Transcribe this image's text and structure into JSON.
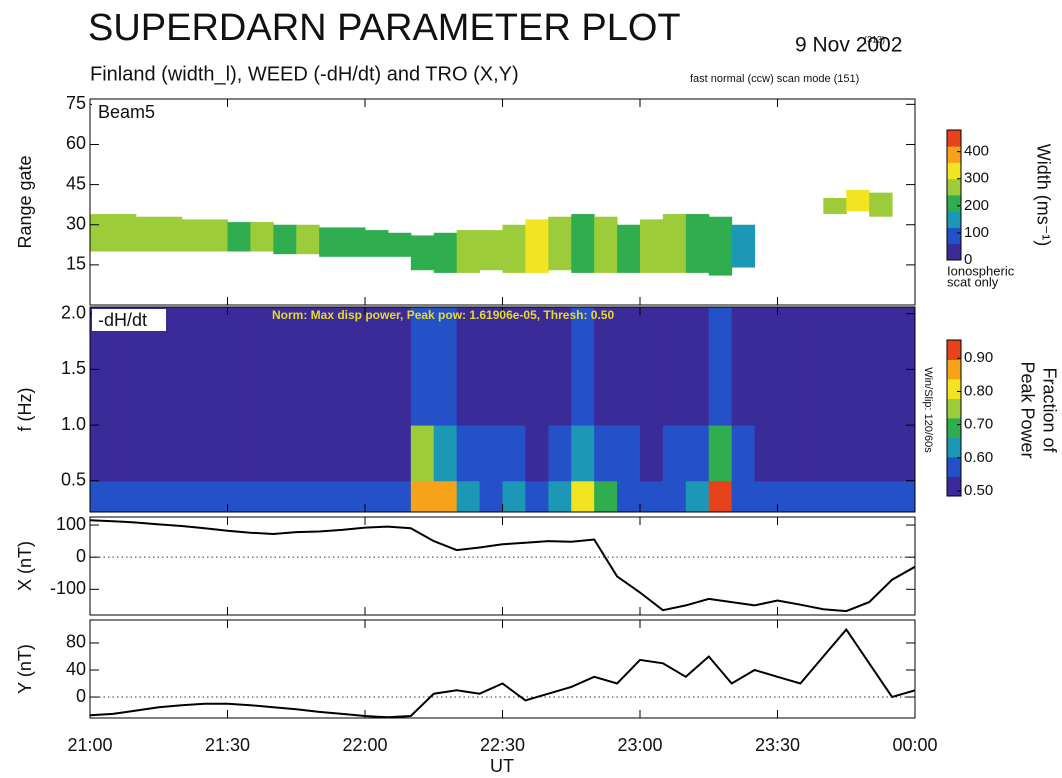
{
  "title": "SUPERDARN PARAMETER PLOT",
  "subtitle": "Finland (width_l), WEED (-dH/dt) and TRO (X,Y)",
  "date": "9 Nov 2002",
  "date_note": "(313)",
  "scan_mode": "fast normal (ccw) scan mode (151)",
  "x_label": "UT",
  "chart_data": [
    {
      "type": "range_time",
      "panel_label": "Beam5",
      "y_label": "Range gate",
      "xlim": [
        0,
        180
      ],
      "xticks": [
        0,
        30,
        60,
        90,
        120,
        150,
        180
      ],
      "ylim": [
        0,
        77
      ],
      "yticks": [
        15,
        30,
        45,
        60,
        75
      ],
      "xbins": [
        0,
        5,
        10,
        15,
        20,
        25,
        30,
        35,
        40,
        45,
        50,
        55,
        60,
        65,
        70,
        75,
        80,
        85,
        90,
        95,
        100,
        105,
        110,
        115,
        120,
        125,
        130,
        135,
        140,
        145,
        150,
        155,
        160,
        165,
        170,
        175,
        180
      ],
      "band_bottom": [
        20,
        20,
        20,
        20,
        20,
        20,
        20,
        20,
        19,
        19,
        18,
        18,
        18,
        18,
        13,
        12,
        12,
        13,
        12,
        12,
        13,
        12,
        12,
        12,
        12,
        12,
        12,
        11,
        14,
        null,
        null,
        null,
        34,
        35,
        33,
        null
      ],
      "band_top": [
        34,
        34,
        33,
        33,
        32,
        32,
        31,
        31,
        30,
        30,
        29,
        29,
        28,
        27,
        26,
        27,
        28,
        28,
        30,
        32,
        33,
        34,
        33,
        30,
        32,
        34,
        34,
        33,
        30,
        null,
        null,
        null,
        40,
        43,
        42,
        null
      ],
      "width": [
        250,
        280,
        260,
        240,
        270,
        250,
        230,
        260,
        220,
        240,
        210,
        200,
        220,
        180,
        200,
        220,
        260,
        240,
        280,
        300,
        250,
        230,
        260,
        220,
        270,
        250,
        200,
        180,
        150,
        null,
        null,
        null,
        250,
        300,
        280,
        null
      ],
      "colorscale": [
        "#3b2b98",
        "#2450c8",
        "#1c97b5",
        "#2fad4f",
        "#9ccc3a",
        "#f2e421",
        "#f7a21b",
        "#e6421c"
      ],
      "colorbar": {
        "label": "Width (ms⁻¹)",
        "lim": [
          0,
          480
        ],
        "ticks": [
          0,
          100,
          200,
          300,
          400
        ],
        "note_lines": [
          "Ionospheric",
          "scat only"
        ]
      }
    },
    {
      "type": "spectrogram",
      "panel_label": "-dH/dt",
      "y_label": "f (Hz)",
      "annotation": "Norm: Max disp power, Peak pow: 1.61906e-05, Thresh: 0.50",
      "side_note": "Win/Slip: 120/60s",
      "xlim": [
        0,
        180
      ],
      "xticks": [
        0,
        30,
        60,
        90,
        120,
        150,
        180
      ],
      "ylim": [
        0.22,
        2.06
      ],
      "yticks": [
        {
          "value": 0.5,
          "label": "0.5"
        },
        {
          "value": 1,
          "label": "1.0"
        },
        {
          "value": 1.5,
          "label": "1.5"
        },
        {
          "value": 2,
          "label": "2.0"
        }
      ],
      "xbins": [
        0,
        5,
        10,
        15,
        20,
        25,
        30,
        35,
        40,
        45,
        50,
        55,
        60,
        65,
        70,
        75,
        80,
        85,
        90,
        95,
        100,
        105,
        110,
        115,
        120,
        125,
        130,
        135,
        140,
        145,
        150,
        155,
        160,
        165,
        170,
        175,
        180
      ],
      "ybins": [
        0.22,
        0.5,
        1.0,
        2.06
      ],
      "z": [
        [
          0.55,
          0.52,
          0.5
        ],
        [
          0.56,
          0.52,
          0.5
        ],
        [
          0.55,
          0.53,
          0.5
        ],
        [
          0.57,
          0.52,
          0.51
        ],
        [
          0.55,
          0.52,
          0.5
        ],
        [
          0.56,
          0.53,
          0.5
        ],
        [
          0.55,
          0.52,
          0.5
        ],
        [
          0.57,
          0.53,
          0.51
        ],
        [
          0.56,
          0.52,
          0.5
        ],
        [
          0.55,
          0.52,
          0.5
        ],
        [
          0.58,
          0.53,
          0.51
        ],
        [
          0.57,
          0.52,
          0.5
        ],
        [
          0.56,
          0.53,
          0.5
        ],
        [
          0.58,
          0.54,
          0.51
        ],
        [
          0.88,
          0.72,
          0.6
        ],
        [
          0.85,
          0.65,
          0.56
        ],
        [
          0.65,
          0.58,
          0.53
        ],
        [
          0.6,
          0.55,
          0.52
        ],
        [
          0.62,
          0.55,
          0.52
        ],
        [
          0.6,
          0.54,
          0.51
        ],
        [
          0.62,
          0.55,
          0.52
        ],
        [
          0.82,
          0.66,
          0.56
        ],
        [
          0.7,
          0.6,
          0.54
        ],
        [
          0.6,
          0.55,
          0.52
        ],
        [
          0.58,
          0.54,
          0.51
        ],
        [
          0.6,
          0.55,
          0.52
        ],
        [
          0.62,
          0.55,
          0.52
        ],
        [
          0.9,
          0.7,
          0.6
        ],
        [
          0.6,
          0.55,
          0.52
        ],
        [
          0.58,
          0.54,
          0.51
        ],
        [
          0.57,
          0.53,
          0.5
        ],
        [
          0.58,
          0.54,
          0.51
        ],
        [
          0.57,
          0.53,
          0.5
        ],
        [
          0.56,
          0.52,
          0.5
        ],
        [
          0.57,
          0.53,
          0.5
        ],
        [
          0.56,
          0.52,
          0.5
        ]
      ],
      "colorscale": [
        "#3b2b98",
        "#2450c8",
        "#1c97b5",
        "#2fad4f",
        "#9ccc3a",
        "#f2e421",
        "#f7a21b",
        "#e6421c"
      ],
      "colorbar": {
        "label_lines": [
          "Fraction of",
          "Peak Power"
        ],
        "lim": [
          0.485,
          0.955
        ],
        "ticks": [
          {
            "value": 0.5,
            "label": "0.50"
          },
          {
            "value": 0.6,
            "label": "0.60"
          },
          {
            "value": 0.7,
            "label": "0.70"
          },
          {
            "value": 0.8,
            "label": "0.80"
          },
          {
            "value": 0.9,
            "label": "0.90"
          }
        ]
      }
    },
    {
      "type": "line",
      "y_label": "X (nT)",
      "color": "#000000",
      "zero_line": true,
      "xlim": [
        0,
        180
      ],
      "xticks": [
        0,
        30,
        60,
        90,
        120,
        150,
        180
      ],
      "ylim": [
        -180,
        125
      ],
      "yticks": [
        -100,
        0,
        100
      ],
      "x": [
        0,
        5,
        10,
        15,
        20,
        25,
        30,
        35,
        40,
        45,
        50,
        55,
        60,
        65,
        70,
        75,
        80,
        85,
        90,
        95,
        100,
        105,
        110,
        115,
        120,
        125,
        130,
        135,
        140,
        145,
        150,
        155,
        160,
        165,
        170,
        175,
        180
      ],
      "values": [
        115,
        112,
        108,
        102,
        97,
        90,
        82,
        76,
        72,
        78,
        80,
        85,
        92,
        95,
        90,
        50,
        22,
        30,
        40,
        45,
        50,
        48,
        55,
        -60,
        -110,
        -165,
        -150,
        -130,
        -140,
        -150,
        -135,
        -148,
        -162,
        -168,
        -140,
        -70,
        -30
      ]
    },
    {
      "type": "line",
      "y_label": "Y (nT)",
      "color": "#000000",
      "zero_line": true,
      "xlim": [
        0,
        180
      ],
      "xticks": [
        {
          "value": 0,
          "label": "21:00"
        },
        {
          "value": 30,
          "label": "21:30"
        },
        {
          "value": 60,
          "label": "22:00"
        },
        {
          "value": 90,
          "label": "22:30"
        },
        {
          "value": 120,
          "label": "23:00"
        },
        {
          "value": 150,
          "label": "23:30"
        },
        {
          "value": 180,
          "label": "00:00"
        }
      ],
      "ylim": [
        -31,
        114
      ],
      "yticks": [
        0,
        40,
        80
      ],
      "x": [
        0,
        5,
        10,
        15,
        20,
        25,
        30,
        35,
        40,
        45,
        50,
        55,
        60,
        65,
        70,
        75,
        80,
        85,
        90,
        95,
        100,
        105,
        110,
        115,
        120,
        125,
        130,
        135,
        140,
        145,
        150,
        155,
        160,
        165,
        170,
        175,
        180
      ],
      "values": [
        -27,
        -25,
        -20,
        -15,
        -12,
        -10,
        -10,
        -12,
        -15,
        -18,
        -22,
        -25,
        -28,
        -30,
        -28,
        5,
        10,
        5,
        20,
        -5,
        5,
        15,
        30,
        20,
        55,
        50,
        30,
        60,
        20,
        40,
        30,
        20,
        60,
        100,
        50,
        0,
        10
      ]
    }
  ]
}
